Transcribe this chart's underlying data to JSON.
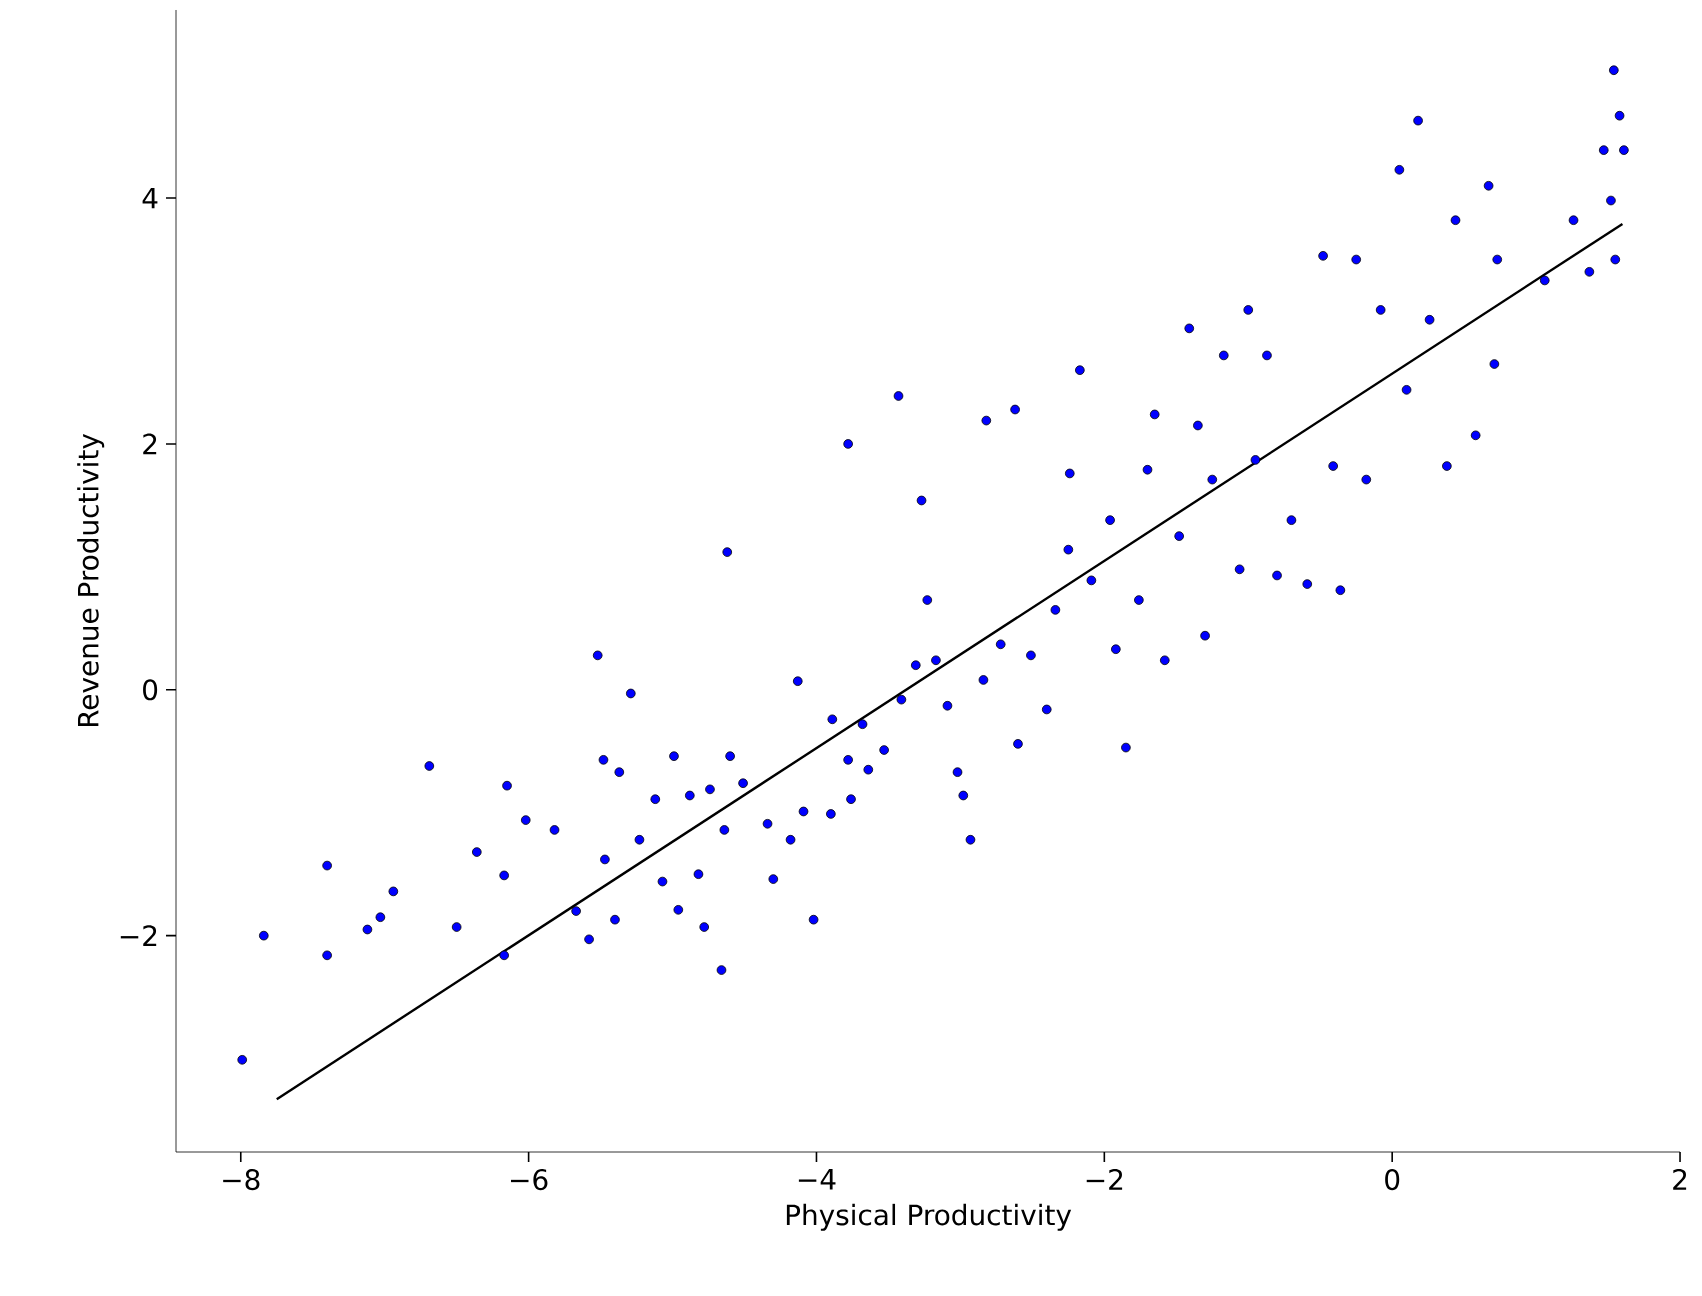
{
  "chart_data": {
    "type": "scatter",
    "xlabel": "Physical Productivity",
    "ylabel": "Revenue Productivity",
    "xlim": [
      -8.45,
      2.0
    ],
    "ylim": [
      -3.76,
      5.53
    ],
    "xticks": [
      {
        "value": -8,
        "label": "−8"
      },
      {
        "value": -6,
        "label": "−6"
      },
      {
        "value": -4,
        "label": "−4"
      },
      {
        "value": -2,
        "label": "−2"
      },
      0,
      2
    ],
    "yticks": [
      {
        "value": -2,
        "label": "−2"
      },
      0,
      2,
      4
    ],
    "grid": false,
    "marker": "circle",
    "series": [
      {
        "color": "#0000ff",
        "x": [
          -7.99,
          -7.84,
          -7.4,
          -7.4,
          -7.12,
          -7.03,
          -6.94,
          -6.69,
          -6.5,
          -6.36,
          -6.17,
          -6.17,
          -6.15,
          -6.02,
          -5.82,
          -5.67,
          -5.58,
          -5.52,
          -5.48,
          -5.47,
          -5.37,
          -5.29,
          -5.4,
          -5.23,
          -5.12,
          -5.07,
          -4.99,
          -4.96,
          -4.88,
          -4.82,
          -4.78,
          -4.74,
          -4.66,
          -4.64,
          -4.6,
          -4.51,
          -4.62,
          -4.34,
          -4.3,
          -4.18,
          -4.13,
          -4.09,
          -4.02,
          -3.9,
          -3.78,
          -3.76,
          -3.68,
          -3.64,
          -3.53,
          -3.41,
          -3.31,
          -3.23,
          -3.17,
          -3.09,
          -3.02,
          -2.98,
          -2.93,
          -2.84,
          -2.72,
          -2.6,
          -2.51,
          -2.4,
          -2.34,
          -2.25,
          -2.24,
          -2.17,
          -2.09,
          -1.96,
          -1.92,
          -1.85,
          -1.76,
          -1.7,
          -1.65,
          -1.58,
          -1.48,
          -1.41,
          -1.35,
          -1.3,
          -1.25,
          -1.17,
          -1.06,
          -1.0,
          -0.95,
          -0.87,
          -0.8,
          -0.7,
          -0.59,
          -0.48,
          -0.41,
          -0.36,
          -0.25,
          -0.18,
          -0.08,
          0.05,
          0.18,
          0.1,
          0.26,
          0.38,
          0.44,
          0.58,
          0.67,
          0.71,
          0.73,
          1.06,
          1.37,
          1.47,
          1.54,
          1.58,
          1.52,
          1.55,
          1.61,
          1.26,
          -3.89,
          -3.43,
          -3.78,
          -3.27,
          -2.82,
          -2.62
        ],
        "values": [
          -3.01,
          -2.0,
          -2.16,
          -1.43,
          -1.95,
          -1.85,
          -1.64,
          -0.62,
          -1.93,
          -1.32,
          -1.51,
          -2.16,
          -0.78,
          -1.06,
          -1.14,
          -1.8,
          -2.03,
          0.28,
          -0.57,
          -1.38,
          -0.67,
          -0.03,
          -1.87,
          -1.22,
          -0.89,
          -1.56,
          -0.54,
          -1.79,
          -0.86,
          -1.5,
          -1.93,
          -0.81,
          -2.28,
          -1.14,
          -0.54,
          -0.76,
          1.12,
          -1.09,
          -1.54,
          -1.22,
          0.07,
          -0.99,
          -1.87,
          -1.01,
          -0.57,
          -0.89,
          -0.28,
          -0.65,
          -0.49,
          -0.08,
          0.2,
          0.73,
          0.24,
          -0.13,
          -0.67,
          -0.86,
          -1.22,
          0.08,
          0.37,
          -0.44,
          0.28,
          -0.16,
          0.65,
          1.14,
          1.76,
          2.6,
          0.89,
          1.38,
          0.33,
          -0.47,
          0.73,
          1.79,
          2.24,
          0.24,
          1.25,
          2.94,
          2.15,
          0.44,
          1.71,
          2.72,
          0.98,
          3.09,
          1.87,
          2.72,
          0.93,
          1.38,
          0.86,
          3.53,
          1.82,
          0.81,
          3.5,
          1.71,
          3.09,
          4.23,
          4.63,
          2.44,
          3.01,
          1.82,
          3.82,
          2.07,
          4.1,
          2.65,
          3.5,
          3.33,
          3.4,
          4.39,
          5.04,
          4.67,
          3.98,
          3.5,
          4.39,
          3.82,
          -0.24,
          2.39,
          2.0,
          1.54,
          2.19,
          2.28
        ]
      },
      {
        "type": "line",
        "color": "#000000",
        "marker": "none",
        "x": [
          -7.75,
          1.6
        ],
        "values": [
          -3.33,
          3.79
        ]
      }
    ]
  }
}
